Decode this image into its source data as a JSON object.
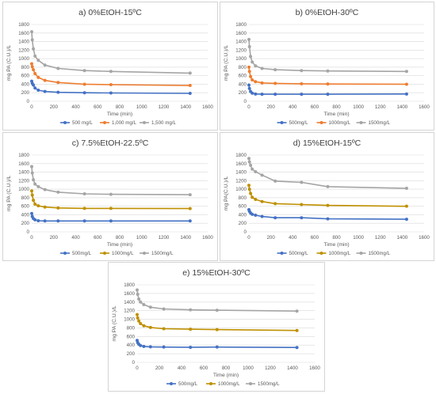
{
  "figure": {
    "colors": {
      "s500": "#4472c4",
      "s1000_orange": "#ed7d31",
      "s1000_gold": "#bf9000",
      "s1500": "#a5a5a5",
      "grid": "#d9d9d9",
      "text": "#595959"
    }
  },
  "chart_data": [
    {
      "type": "line",
      "title": "a) 0%EtOH-15ºC",
      "xlabel": "Time (min)",
      "ylabel": "mg PA (C.U.)/L",
      "xlim": [
        0,
        1600
      ],
      "ylim": [
        0,
        1800
      ],
      "xticks": [
        "0",
        "200",
        "400",
        "600",
        "800",
        "1000",
        "1200",
        "1400",
        "1600"
      ],
      "yticks": [
        "0",
        "200",
        "400",
        "600",
        "800",
        "1000",
        "1200",
        "1400",
        "1600",
        "1800"
      ],
      "grid": true,
      "legend_position": "bottom",
      "series": [
        {
          "name": "500 mg/L",
          "color": "#4472c4",
          "x": [
            0,
            5,
            15,
            30,
            60,
            120,
            240,
            480,
            720,
            1440
          ],
          "y": [
            470,
            420,
            380,
            310,
            260,
            230,
            210,
            200,
            195,
            185
          ]
        },
        {
          "name": "1,000 mg/L",
          "color": "#ed7d31",
          "x": [
            0,
            5,
            15,
            30,
            60,
            120,
            240,
            480,
            720,
            1440
          ],
          "y": [
            880,
            810,
            740,
            650,
            560,
            490,
            440,
            400,
            390,
            370
          ]
        },
        {
          "name": "1,500 mg/L",
          "color": "#a5a5a5",
          "x": [
            0,
            5,
            15,
            30,
            60,
            120,
            240,
            480,
            720,
            1440
          ],
          "y": [
            1630,
            1440,
            1230,
            1060,
            960,
            850,
            770,
            720,
            700,
            660
          ]
        }
      ]
    },
    {
      "type": "line",
      "title": "b) 0%EtOH-30ºC",
      "xlabel": "Time (min)",
      "ylabel": "mg PA (C.U.)/L",
      "xlim": [
        0,
        1600
      ],
      "ylim": [
        0,
        1800
      ],
      "xticks": [
        "0",
        "200",
        "400",
        "600",
        "800",
        "1000",
        "1200",
        "1400",
        "1600"
      ],
      "yticks": [
        "0",
        "200",
        "400",
        "600",
        "800",
        "1000",
        "1200",
        "1400",
        "1600",
        "1800"
      ],
      "grid": true,
      "legend_position": "bottom",
      "series": [
        {
          "name": "500mg/L",
          "color": "#4472c4",
          "x": [
            0,
            5,
            15,
            30,
            60,
            120,
            240,
            480,
            720,
            1440
          ],
          "y": [
            380,
            300,
            230,
            190,
            170,
            165,
            165,
            165,
            165,
            170
          ]
        },
        {
          "name": "1000mg/L",
          "color": "#ed7d31",
          "x": [
            0,
            5,
            15,
            30,
            60,
            120,
            240,
            480,
            720,
            1440
          ],
          "y": [
            800,
            700,
            580,
            500,
            460,
            430,
            420,
            410,
            405,
            400
          ]
        },
        {
          "name": "1500mg/L",
          "color": "#a5a5a5",
          "x": [
            0,
            5,
            15,
            30,
            60,
            120,
            240,
            480,
            720,
            1440
          ],
          "y": [
            1450,
            1280,
            1050,
            920,
            830,
            770,
            740,
            720,
            710,
            700
          ]
        }
      ]
    },
    {
      "type": "line",
      "title": "c) 7.5%EtOH-22.5ºC",
      "xlabel": "Time (min)",
      "ylabel": "mg PA (C.U.)/L",
      "xlim": [
        0,
        1600
      ],
      "ylim": [
        0,
        1800
      ],
      "xticks": [
        "0",
        "200",
        "400",
        "600",
        "800",
        "1000",
        "1200",
        "1400",
        "1600"
      ],
      "yticks": [
        "0",
        "200",
        "400",
        "600",
        "800",
        "1000",
        "1200",
        "1400",
        "1600",
        "1800"
      ],
      "grid": true,
      "legend_position": "bottom",
      "series": [
        {
          "name": "500mg/L",
          "color": "#4472c4",
          "x": [
            0,
            5,
            15,
            30,
            60,
            120,
            240,
            480,
            720,
            1440
          ],
          "y": [
            430,
            360,
            310,
            280,
            260,
            255,
            255,
            255,
            255,
            255
          ]
        },
        {
          "name": "1000mg/L",
          "color": "#bf9000",
          "x": [
            0,
            5,
            15,
            30,
            60,
            120,
            240,
            480,
            720,
            1440
          ],
          "y": [
            960,
            860,
            740,
            650,
            610,
            580,
            560,
            550,
            550,
            545
          ]
        },
        {
          "name": "1500mg/L",
          "color": "#a5a5a5",
          "x": [
            0,
            5,
            15,
            30,
            60,
            120,
            240,
            480,
            720,
            1440
          ],
          "y": [
            1530,
            1380,
            1220,
            1120,
            1060,
            990,
            930,
            890,
            880,
            870
          ]
        }
      ]
    },
    {
      "type": "line",
      "title": "d) 15%EtOH-15ºC",
      "xlabel": "Time (min)",
      "ylabel": "mg PA(C.U.)/L",
      "xlim": [
        0,
        1600
      ],
      "ylim": [
        0,
        1800
      ],
      "xticks": [
        "0",
        "200",
        "400",
        "600",
        "800",
        "1000",
        "1200",
        "1400",
        "1600"
      ],
      "yticks": [
        "0",
        "200",
        "400",
        "600",
        "800",
        "1000",
        "1200",
        "1400",
        "1600",
        "1800"
      ],
      "grid": true,
      "legend_position": "bottom",
      "series": [
        {
          "name": "500mg/L",
          "color": "#4472c4",
          "x": [
            0,
            5,
            15,
            30,
            60,
            120,
            240,
            480,
            720,
            1440
          ],
          "y": [
            520,
            480,
            440,
            410,
            390,
            360,
            330,
            330,
            305,
            295
          ]
        },
        {
          "name": "1000mg/L",
          "color": "#bf9000",
          "x": [
            0,
            5,
            15,
            30,
            60,
            120,
            240,
            480,
            720,
            1440
          ],
          "y": [
            1090,
            1000,
            900,
            810,
            760,
            710,
            660,
            640,
            620,
            600
          ]
        },
        {
          "name": "1500mg/L",
          "color": "#a5a5a5",
          "x": [
            0,
            5,
            15,
            30,
            60,
            120,
            240,
            480,
            720,
            1440
          ],
          "y": [
            1720,
            1640,
            1560,
            1470,
            1410,
            1330,
            1190,
            1160,
            1060,
            1020
          ]
        }
      ]
    },
    {
      "type": "line",
      "title": "e) 15%EtOH-30ºC",
      "xlabel": "Time (min)",
      "ylabel": "mg PA (C.U.)/L",
      "xlim": [
        0,
        1600
      ],
      "ylim": [
        0,
        1800
      ],
      "xticks": [
        "0",
        "200",
        "400",
        "600",
        "800",
        "1000",
        "1200",
        "1400",
        "1600"
      ],
      "yticks": [
        "0",
        "200",
        "400",
        "600",
        "800",
        "1000",
        "1200",
        "1400",
        "1600",
        "1800"
      ],
      "grid": true,
      "legend_position": "bottom",
      "series": [
        {
          "name": "500mg/L",
          "color": "#4472c4",
          "x": [
            0,
            5,
            15,
            30,
            60,
            120,
            240,
            480,
            720,
            1440
          ],
          "y": [
            510,
            460,
            420,
            390,
            370,
            360,
            355,
            350,
            355,
            345
          ]
        },
        {
          "name": "1000mg/L",
          "color": "#bf9000",
          "x": [
            0,
            5,
            15,
            30,
            60,
            120,
            240,
            480,
            720,
            1440
          ],
          "y": [
            1110,
            1030,
            960,
            900,
            850,
            810,
            780,
            770,
            760,
            740
          ]
        },
        {
          "name": "1500mg/L",
          "color": "#a5a5a5",
          "x": [
            0,
            5,
            15,
            30,
            60,
            120,
            240,
            480,
            720,
            1440
          ],
          "y": [
            1680,
            1580,
            1470,
            1400,
            1340,
            1280,
            1240,
            1220,
            1210,
            1190
          ]
        }
      ]
    }
  ]
}
